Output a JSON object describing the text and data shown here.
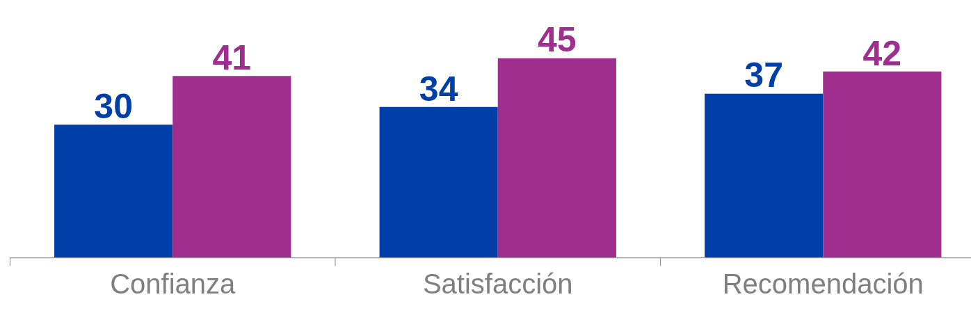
{
  "chart_data": {
    "type": "bar",
    "categories": [
      "Confianza",
      "Satisfacción",
      "Recomendación"
    ],
    "series": [
      {
        "color": "#003fa7",
        "values": [
          30,
          34,
          37
        ]
      },
      {
        "color": "#9e2f8e",
        "values": [
          41,
          45,
          42
        ]
      }
    ],
    "data_labels": true
  }
}
